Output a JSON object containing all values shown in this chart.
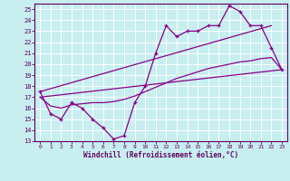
{
  "xlabel": "Windchill (Refroidissement éolien,°C)",
  "color": "#880088",
  "bg_color": "#c8eef0",
  "grid_color": "#ffffff",
  "xlim": [
    -0.5,
    23.5
  ],
  "ylim": [
    13,
    25.5
  ],
  "yticks": [
    13,
    14,
    15,
    16,
    17,
    18,
    19,
    20,
    21,
    22,
    23,
    24,
    25
  ],
  "xticks": [
    0,
    1,
    2,
    3,
    4,
    5,
    6,
    7,
    8,
    9,
    10,
    11,
    12,
    13,
    14,
    15,
    16,
    17,
    18,
    19,
    20,
    21,
    22,
    23
  ],
  "main_x": [
    0,
    1,
    2,
    3,
    4,
    5,
    6,
    7,
    8,
    9,
    10,
    11,
    12,
    13,
    14,
    15,
    16,
    17,
    18,
    19,
    20,
    21,
    22,
    23
  ],
  "main_y": [
    17.5,
    15.5,
    15.0,
    16.5,
    16.0,
    15.0,
    14.2,
    13.2,
    13.5,
    16.5,
    18.0,
    21.0,
    23.5,
    22.5,
    23.0,
    23.0,
    23.5,
    23.5,
    25.3,
    24.8,
    23.5,
    23.5,
    21.5,
    19.5
  ],
  "upper_line_x": [
    0,
    22
  ],
  "upper_line_y": [
    17.5,
    23.5
  ],
  "lower_line_x": [
    0,
    23
  ],
  "lower_line_y": [
    17.0,
    19.5
  ],
  "smooth_x": [
    0,
    1,
    2,
    3,
    4,
    5,
    6,
    7,
    8,
    9,
    10,
    11,
    12,
    13,
    14,
    15,
    16,
    17,
    18,
    19,
    20,
    21,
    22,
    23
  ],
  "smooth_y": [
    17.0,
    16.2,
    16.0,
    16.3,
    16.4,
    16.5,
    16.5,
    16.6,
    16.8,
    17.1,
    17.5,
    17.9,
    18.3,
    18.7,
    19.0,
    19.3,
    19.6,
    19.8,
    20.0,
    20.2,
    20.3,
    20.5,
    20.6,
    19.5
  ]
}
